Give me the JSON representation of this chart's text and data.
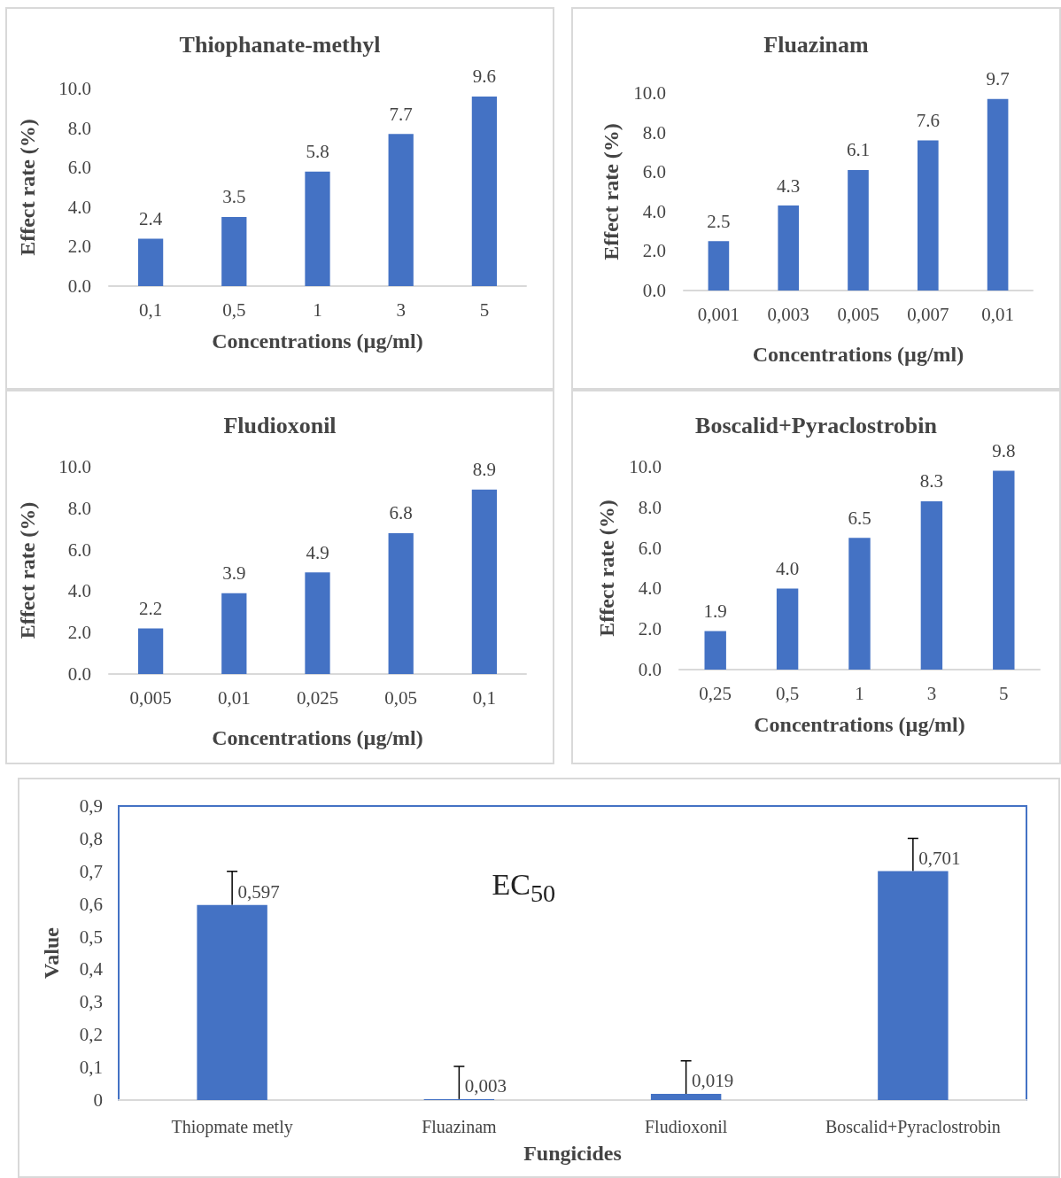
{
  "chart_data": [
    {
      "type": "bar",
      "title": "Thiophanate-methyl",
      "xlabel": "Concentrations (µg/ml)",
      "ylabel": "Effect rate (%)",
      "categories": [
        "0,1",
        "0,5",
        "1",
        "3",
        "5"
      ],
      "values": [
        2.4,
        3.5,
        5.8,
        7.7,
        9.6
      ],
      "value_labels": [
        "2.4",
        "3.5",
        "5.8",
        "7.7",
        "9.6"
      ],
      "color": "#4472c4",
      "ylim": [
        0,
        10
      ],
      "yticks": [
        {
          "value": 0,
          "label": "0.0"
        },
        {
          "value": 2,
          "label": "2.0"
        },
        {
          "value": 4,
          "label": "4.0"
        },
        {
          "value": 6,
          "label": "6.0"
        },
        {
          "value": 8,
          "label": "8.0"
        },
        {
          "value": 10,
          "label": "10.0"
        }
      ]
    },
    {
      "type": "bar",
      "title": "Fluazinam",
      "xlabel": "Concentrations (µg/ml)",
      "ylabel": "Effect rate (%)",
      "categories": [
        "0,001",
        "0,003",
        "0,005",
        "0,007",
        "0,01"
      ],
      "values": [
        2.5,
        4.3,
        6.1,
        7.6,
        9.7
      ],
      "value_labels": [
        "2.5",
        "4.3",
        "6.1",
        "7.6",
        "9.7"
      ],
      "color": "#4472c4",
      "ylim": [
        0,
        10
      ],
      "yticks": [
        {
          "value": 0,
          "label": "0.0"
        },
        {
          "value": 2,
          "label": "2.0"
        },
        {
          "value": 4,
          "label": "4.0"
        },
        {
          "value": 6,
          "label": "6.0"
        },
        {
          "value": 8,
          "label": "8.0"
        },
        {
          "value": 10,
          "label": "10.0"
        }
      ]
    },
    {
      "type": "bar",
      "title": "Fludioxonil",
      "xlabel": "Concentrations (µg/ml)",
      "ylabel": "Effect rate (%)",
      "categories": [
        "0,005",
        "0,01",
        "0,025",
        "0,05",
        "0,1"
      ],
      "values": [
        2.2,
        3.9,
        4.9,
        6.8,
        8.9
      ],
      "value_labels": [
        "2.2",
        "3.9",
        "4.9",
        "6.8",
        "8.9"
      ],
      "color": "#4472c4",
      "ylim": [
        0,
        10
      ],
      "yticks": [
        {
          "value": 0,
          "label": "0.0"
        },
        {
          "value": 2,
          "label": "2.0"
        },
        {
          "value": 4,
          "label": "4.0"
        },
        {
          "value": 6,
          "label": "6.0"
        },
        {
          "value": 8,
          "label": "8.0"
        },
        {
          "value": 10,
          "label": "10.0"
        }
      ]
    },
    {
      "type": "bar",
      "title": "Boscalid+Pyraclostrobin",
      "xlabel": "Concentrations (µg/ml)",
      "ylabel": "Effect rate (%)",
      "categories": [
        "0,25",
        "0,5",
        "1",
        "3",
        "5"
      ],
      "values": [
        1.9,
        4.0,
        6.5,
        8.3,
        9.8
      ],
      "value_labels": [
        "1.9",
        "4.0",
        "6.5",
        "8.3",
        "9.8"
      ],
      "color": "#4472c4",
      "ylim": [
        0,
        10
      ],
      "yticks": [
        {
          "value": 0,
          "label": "0.0"
        },
        {
          "value": 2,
          "label": "2.0"
        },
        {
          "value": 4,
          "label": "4.0"
        },
        {
          "value": 6,
          "label": "6.0"
        },
        {
          "value": 8,
          "label": "8.0"
        },
        {
          "value": 10,
          "label": "10.0"
        }
      ]
    },
    {
      "type": "bar",
      "xlabel": "Fungicides",
      "ylabel": "Value",
      "annotations": [
        "EC$_{50}$"
      ],
      "categories": [
        "Thiopmate metly",
        "Fluazinam",
        "Fludioxonil",
        "Boscalid+Pyraclostrobin"
      ],
      "values": [
        0.597,
        0.003,
        0.019,
        0.701
      ],
      "value_labels": [
        "0,597",
        "0,003",
        "0,019",
        "0,701"
      ],
      "errors": [
        [
          0.597,
          0.7
        ],
        [
          0.003,
          0.103
        ],
        [
          0.019,
          0.12
        ],
        [
          0.701,
          0.801
        ]
      ],
      "color": "#4472c4",
      "ylim": [
        0,
        0.9
      ],
      "yticks": [
        {
          "value": 0,
          "label": "0"
        },
        {
          "value": 0.1,
          "label": "0,1"
        },
        {
          "value": 0.2,
          "label": "0,2"
        },
        {
          "value": 0.3,
          "label": "0,3"
        },
        {
          "value": 0.4,
          "label": "0,4"
        },
        {
          "value": 0.5,
          "label": "0,5"
        },
        {
          "value": 0.6,
          "label": "0,6"
        },
        {
          "value": 0.7,
          "label": "0,7"
        },
        {
          "value": 0.8,
          "label": "0,8"
        },
        {
          "value": 0.9,
          "label": "0,9"
        }
      ]
    }
  ]
}
